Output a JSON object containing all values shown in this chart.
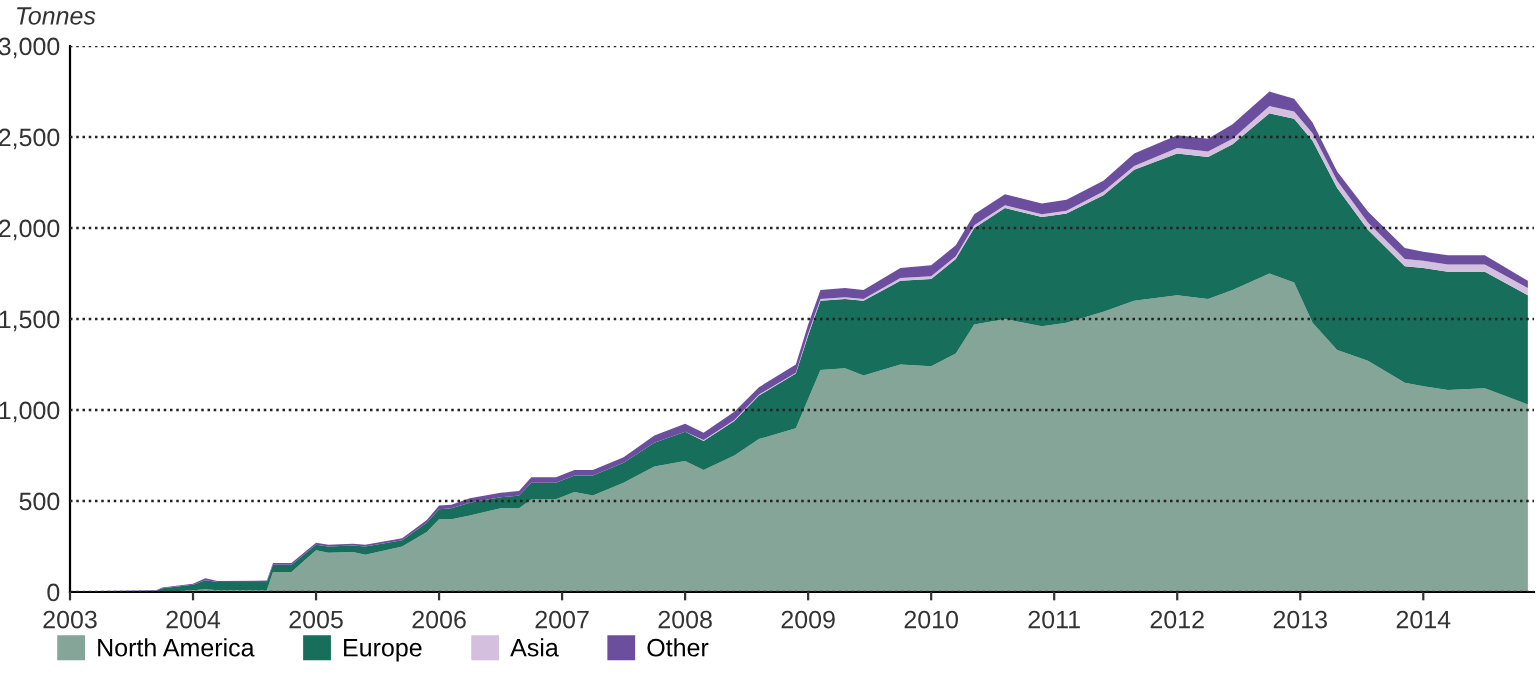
{
  "chart_data": {
    "type": "area",
    "stacked": true,
    "ylabel": "Tonnes",
    "x": [
      2003.0,
      2003.2,
      2003.7,
      2003.75,
      2004.0,
      2004.1,
      2004.2,
      2004.6,
      2004.65,
      2004.8,
      2005.0,
      2005.1,
      2005.3,
      2005.4,
      2005.7,
      2005.9,
      2006.0,
      2006.1,
      2006.25,
      2006.5,
      2006.65,
      2006.75,
      2006.95,
      2007.1,
      2007.25,
      2007.5,
      2007.75,
      2008.0,
      2008.15,
      2008.4,
      2008.6,
      2008.9,
      2009.0,
      2009.1,
      2009.3,
      2009.45,
      2009.75,
      2010.0,
      2010.2,
      2010.35,
      2010.6,
      2010.9,
      2011.1,
      2011.4,
      2011.65,
      2012.0,
      2012.25,
      2012.45,
      2012.75,
      2012.95,
      2013.1,
      2013.3,
      2013.55,
      2013.85,
      2014.0,
      2014.2,
      2014.5,
      2014.85
    ],
    "series": [
      {
        "name": "North America",
        "color": "#84a598",
        "values": [
          0,
          0,
          0,
          0,
          10,
          15,
          10,
          10,
          110,
          110,
          230,
          215,
          220,
          205,
          250,
          330,
          400,
          400,
          420,
          460,
          460,
          510,
          510,
          550,
          530,
          600,
          690,
          720,
          670,
          750,
          840,
          900,
          1060,
          1220,
          1230,
          1190,
          1250,
          1240,
          1310,
          1470,
          1500,
          1460,
          1480,
          1540,
          1600,
          1630,
          1610,
          1660,
          1750,
          1700,
          1480,
          1330,
          1270,
          1150,
          1130,
          1110,
          1120,
          1030
        ]
      },
      {
        "name": "Europe",
        "color": "#176e5a",
        "values": [
          0,
          0,
          5,
          20,
          30,
          50,
          45,
          45,
          40,
          40,
          30,
          35,
          35,
          45,
          35,
          50,
          55,
          60,
          70,
          60,
          70,
          90,
          90,
          90,
          110,
          110,
          130,
          160,
          160,
          190,
          240,
          300,
          350,
          380,
          380,
          410,
          460,
          480,
          520,
          530,
          610,
          600,
          600,
          640,
          720,
          780,
          780,
          800,
          880,
          900,
          1000,
          890,
          720,
          640,
          650,
          650,
          640,
          600
        ]
      },
      {
        "name": "Asia",
        "color": "#d4bfdf",
        "values": [
          0,
          0,
          0,
          0,
          0,
          0,
          0,
          0,
          0,
          0,
          0,
          0,
          0,
          0,
          0,
          0,
          0,
          0,
          0,
          0,
          0,
          0,
          0,
          0,
          0,
          0,
          0,
          0,
          5,
          5,
          5,
          5,
          10,
          10,
          10,
          10,
          15,
          15,
          15,
          15,
          15,
          15,
          15,
          20,
          20,
          30,
          30,
          30,
          40,
          40,
          40,
          40,
          40,
          40,
          40,
          40,
          40,
          40
        ]
      },
      {
        "name": "Other",
        "color": "#6b4e9e",
        "values": [
          0,
          5,
          5,
          5,
          5,
          10,
          5,
          8,
          10,
          10,
          10,
          10,
          10,
          10,
          10,
          15,
          20,
          20,
          25,
          25,
          25,
          30,
          30,
          30,
          30,
          30,
          40,
          45,
          40,
          45,
          40,
          45,
          50,
          50,
          50,
          50,
          55,
          60,
          60,
          60,
          60,
          60,
          60,
          60,
          70,
          70,
          70,
          80,
          80,
          70,
          60,
          50,
          60,
          60,
          50,
          50,
          50,
          40
        ]
      }
    ],
    "xlim": [
      2003,
      2014.9
    ],
    "xticks": [
      2003,
      2004,
      2005,
      2006,
      2007,
      2008,
      2009,
      2010,
      2011,
      2012,
      2013,
      2014
    ],
    "ylim": [
      0,
      3000
    ],
    "yticks": [
      {
        "value": 0,
        "label": "0"
      },
      {
        "value": 500,
        "label": "500"
      },
      {
        "value": 1000,
        "label": "1,000"
      },
      {
        "value": 1500,
        "label": "1,500"
      },
      {
        "value": 2000,
        "label": "2,000"
      },
      {
        "value": 2500,
        "label": "2,500"
      },
      {
        "value": 3000,
        "label": "3,000"
      }
    ],
    "grid": "y",
    "legend": "bottom left"
  }
}
